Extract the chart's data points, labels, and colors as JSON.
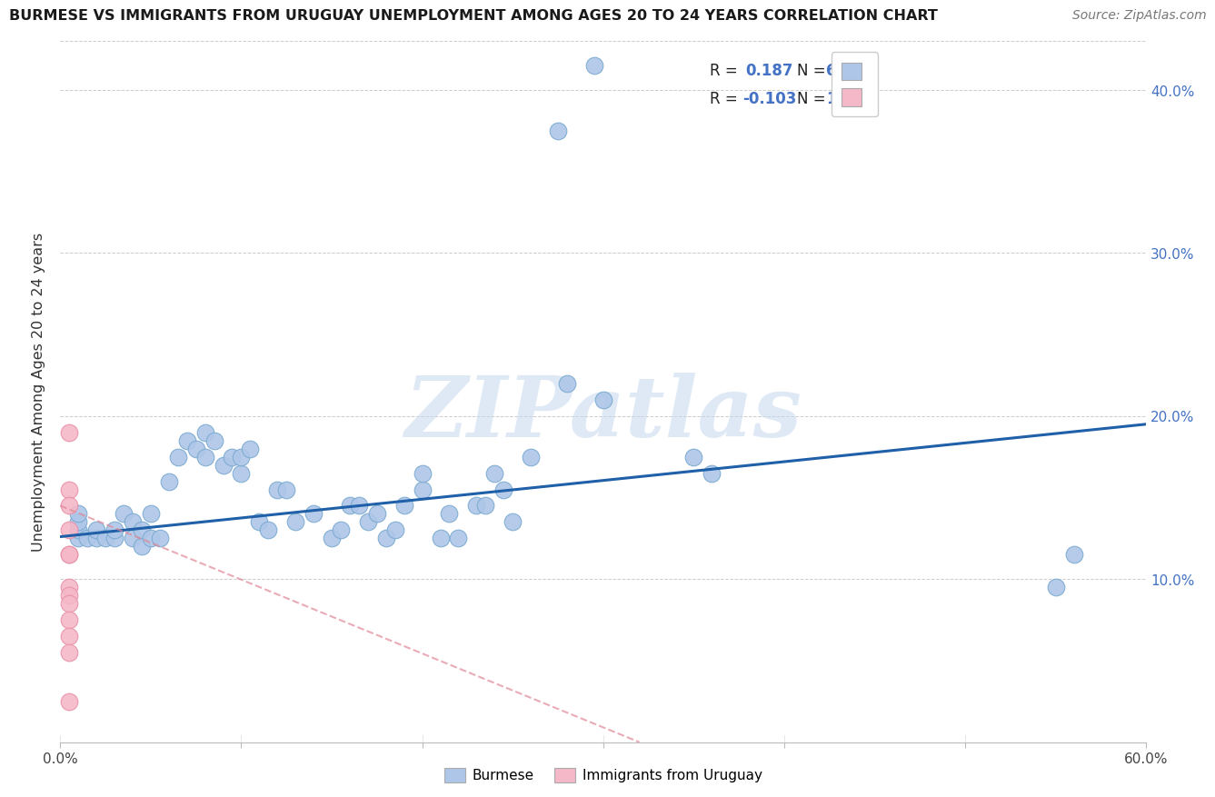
{
  "title": "BURMESE VS IMMIGRANTS FROM URUGUAY UNEMPLOYMENT AMONG AGES 20 TO 24 YEARS CORRELATION CHART",
  "source": "Source: ZipAtlas.com",
  "ylabel": "Unemployment Among Ages 20 to 24 years",
  "xlim": [
    0.0,
    0.6
  ],
  "ylim": [
    0.0,
    0.43
  ],
  "xticks": [
    0.0,
    0.1,
    0.2,
    0.3,
    0.4,
    0.5,
    0.6
  ],
  "yticks": [
    0.0,
    0.1,
    0.2,
    0.3,
    0.4
  ],
  "blue_R": "0.187",
  "blue_N": "64",
  "pink_R": "-0.103",
  "pink_N": "13",
  "blue_color": "#aec6e8",
  "blue_edge_color": "#7aaad0",
  "blue_line_color": "#2060a8",
  "pink_color": "#f4b8c8",
  "pink_edge_color": "#e890a8",
  "pink_line_color": "#e08898",
  "watermark": "ZIPatlas",
  "blue_line_x0": 0.0,
  "blue_line_x1": 0.6,
  "blue_line_y0": 0.126,
  "blue_line_y1": 0.195,
  "pink_line_x0": 0.0,
  "pink_line_x1": 0.32,
  "pink_line_y0": 0.145,
  "pink_line_y1": 0.0,
  "blue_scatter_x": [
    0.295,
    0.275,
    0.01,
    0.01,
    0.01,
    0.01,
    0.015,
    0.02,
    0.02,
    0.025,
    0.03,
    0.03,
    0.035,
    0.04,
    0.04,
    0.045,
    0.045,
    0.05,
    0.05,
    0.055,
    0.06,
    0.065,
    0.07,
    0.075,
    0.08,
    0.08,
    0.085,
    0.09,
    0.095,
    0.1,
    0.1,
    0.105,
    0.11,
    0.115,
    0.12,
    0.125,
    0.13,
    0.14,
    0.15,
    0.155,
    0.16,
    0.165,
    0.17,
    0.175,
    0.18,
    0.185,
    0.19,
    0.2,
    0.2,
    0.21,
    0.215,
    0.22,
    0.23,
    0.235,
    0.24,
    0.245,
    0.25,
    0.26,
    0.28,
    0.3,
    0.35,
    0.36,
    0.55,
    0.56
  ],
  "blue_scatter_y": [
    0.415,
    0.375,
    0.125,
    0.13,
    0.135,
    0.14,
    0.125,
    0.125,
    0.13,
    0.125,
    0.125,
    0.13,
    0.14,
    0.125,
    0.135,
    0.12,
    0.13,
    0.125,
    0.14,
    0.125,
    0.16,
    0.175,
    0.185,
    0.18,
    0.19,
    0.175,
    0.185,
    0.17,
    0.175,
    0.165,
    0.175,
    0.18,
    0.135,
    0.13,
    0.155,
    0.155,
    0.135,
    0.14,
    0.125,
    0.13,
    0.145,
    0.145,
    0.135,
    0.14,
    0.125,
    0.13,
    0.145,
    0.155,
    0.165,
    0.125,
    0.14,
    0.125,
    0.145,
    0.145,
    0.165,
    0.155,
    0.135,
    0.175,
    0.22,
    0.21,
    0.175,
    0.165,
    0.095,
    0.115
  ],
  "pink_scatter_x": [
    0.005,
    0.005,
    0.005,
    0.005,
    0.005,
    0.005,
    0.005,
    0.005,
    0.005,
    0.005,
    0.005,
    0.005,
    0.005
  ],
  "pink_scatter_y": [
    0.19,
    0.155,
    0.145,
    0.13,
    0.115,
    0.115,
    0.095,
    0.09,
    0.085,
    0.075,
    0.065,
    0.055,
    0.025
  ]
}
